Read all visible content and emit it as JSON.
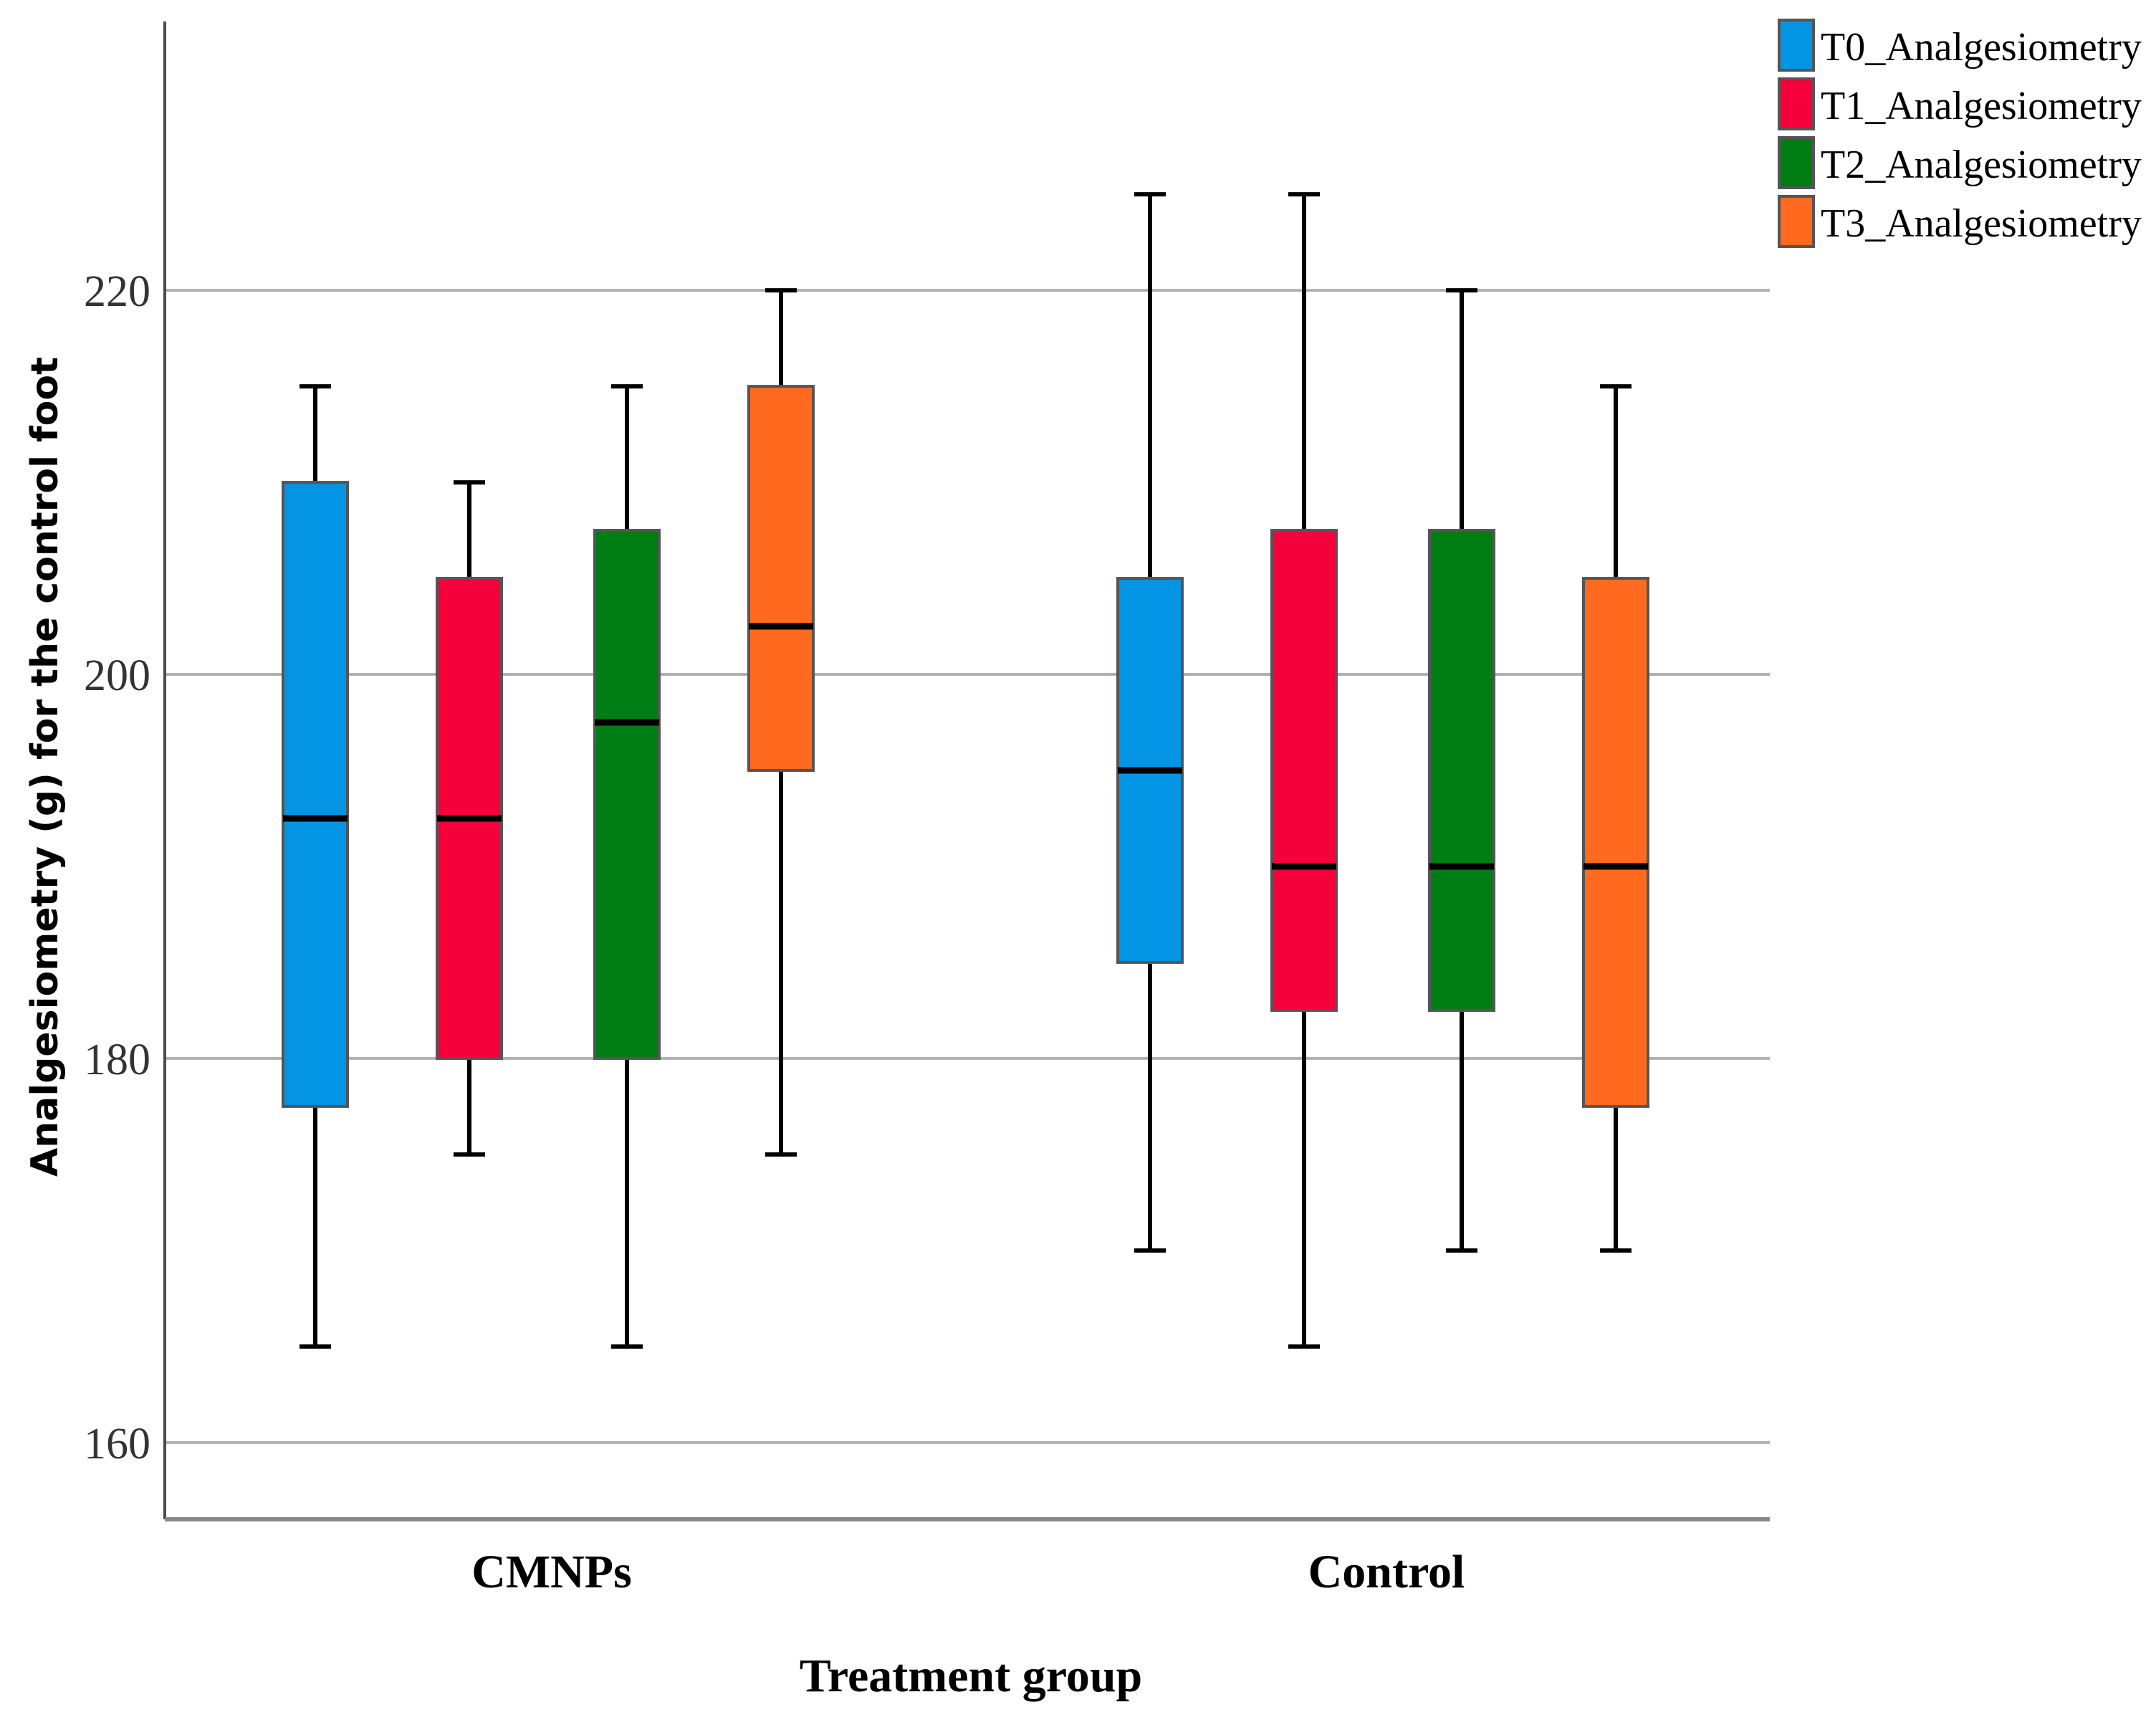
{
  "chart_data": {
    "type": "boxplot",
    "title": "",
    "xlabel": "Treatment group",
    "ylabel": "Analgesiometry (g) for the control foot",
    "ylim": [
      156,
      234
    ],
    "yticks": [
      160,
      180,
      200,
      220
    ],
    "grid": true,
    "legend_position": "top-right",
    "categories": [
      "CMNPs",
      "Control"
    ],
    "series": [
      {
        "name": "T0_Analgesiometry",
        "color": "#0395E3",
        "boxes": [
          {
            "category": "CMNPs",
            "whisker_low": 165,
            "q1": 177.5,
            "median": 192.5,
            "q3": 210,
            "whisker_high": 215
          },
          {
            "category": "Control",
            "whisker_low": 170,
            "q1": 185,
            "median": 195,
            "q3": 205,
            "whisker_high": 225
          }
        ]
      },
      {
        "name": "T1_Analgesiometry",
        "color": "#F5003B",
        "boxes": [
          {
            "category": "CMNPs",
            "whisker_low": 175,
            "q1": 180,
            "median": 192.5,
            "q3": 205,
            "whisker_high": 210
          },
          {
            "category": "Control",
            "whisker_low": 165,
            "q1": 182.5,
            "median": 190,
            "q3": 207.5,
            "whisker_high": 225
          }
        ]
      },
      {
        "name": "T2_Analgesiometry",
        "color": "#007D13",
        "boxes": [
          {
            "category": "CMNPs",
            "whisker_low": 165,
            "q1": 180,
            "median": 197.5,
            "q3": 207.5,
            "whisker_high": 215
          },
          {
            "category": "Control",
            "whisker_low": 170,
            "q1": 182.5,
            "median": 190,
            "q3": 207.5,
            "whisker_high": 220
          }
        ]
      },
      {
        "name": "T3_Analgesiometry",
        "color": "#FF6A1F",
        "boxes": [
          {
            "category": "CMNPs",
            "whisker_low": 175,
            "q1": 195,
            "median": 202.5,
            "q3": 215,
            "whisker_high": 220
          },
          {
            "category": "Control",
            "whisker_low": 170,
            "q1": 177.5,
            "median": 190,
            "q3": 205,
            "whisker_high": 215
          }
        ]
      }
    ]
  }
}
